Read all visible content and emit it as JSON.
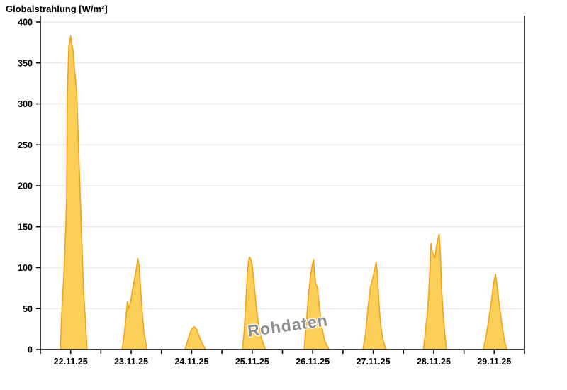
{
  "header": {
    "title": "Globalstrahlung [W/m²]"
  },
  "watermark": {
    "label": "Rohdaten"
  },
  "colors": {
    "area_fill": "#FCCF58",
    "area_stroke": "#F3A21E",
    "grid": "#ECECEC",
    "axis": "#000000",
    "label": "#000000",
    "watermark_text": "#8D8D8D",
    "background": "#FFFFFF"
  },
  "chart_data": {
    "type": "area",
    "title": "Globalstrahlung [W/m²]",
    "ylabel": "Globalstrahlung [W/m²]",
    "xlabel": "",
    "ylim": [
      0,
      400
    ],
    "y_ticks": [
      0,
      50,
      100,
      150,
      200,
      250,
      300,
      350,
      400
    ],
    "grid": "horizontal",
    "legend": "none",
    "watermark": "Rohdaten",
    "categories": [
      "22.11.25",
      "23.11.25",
      "24.11.25",
      "25.11.25",
      "26.11.25",
      "27.11.25",
      "28.11.25",
      "29.11.25"
    ],
    "peak_values_wm2": [
      383,
      111,
      28,
      113,
      110,
      107,
      141,
      92
    ],
    "series": [
      {
        "name": "Globalstrahlung Rohdaten",
        "days": [
          {
            "date": "22.11.25",
            "peak": 383,
            "profile": [
              [
                0.33,
                0
              ],
              [
                0.35,
                40
              ],
              [
                0.39,
                95
              ],
              [
                0.42,
                150
              ],
              [
                0.435,
                190
              ],
              [
                0.445,
                310
              ],
              [
                0.47,
                370
              ],
              [
                0.5,
                383
              ],
              [
                0.52,
                372
              ],
              [
                0.54,
                365
              ],
              [
                0.56,
                345
              ],
              [
                0.6,
                315
              ],
              [
                0.62,
                270
              ],
              [
                0.655,
                195
              ],
              [
                0.68,
                140
              ],
              [
                0.71,
                75
              ],
              [
                0.74,
                40
              ],
              [
                0.77,
                0
              ]
            ]
          },
          {
            "date": "23.11.25",
            "peak": 111,
            "profile": [
              [
                0.35,
                0
              ],
              [
                0.39,
                22
              ],
              [
                0.42,
                45
              ],
              [
                0.44,
                59
              ],
              [
                0.46,
                50
              ],
              [
                0.49,
                58
              ],
              [
                0.52,
                72
              ],
              [
                0.56,
                88
              ],
              [
                0.59,
                100
              ],
              [
                0.61,
                111
              ],
              [
                0.63,
                103
              ],
              [
                0.65,
                80
              ],
              [
                0.68,
                48
              ],
              [
                0.71,
                22
              ],
              [
                0.76,
                0
              ]
            ]
          },
          {
            "date": "24.11.25",
            "peak": 28,
            "profile": [
              [
                0.39,
                0
              ],
              [
                0.43,
                10
              ],
              [
                0.47,
                20
              ],
              [
                0.51,
                26
              ],
              [
                0.54,
                28
              ],
              [
                0.58,
                25
              ],
              [
                0.62,
                17
              ],
              [
                0.67,
                8
              ],
              [
                0.73,
                0
              ]
            ]
          },
          {
            "date": "25.11.25",
            "peak": 113,
            "profile": [
              [
                0.34,
                0
              ],
              [
                0.37,
                25
              ],
              [
                0.4,
                65
              ],
              [
                0.42,
                92
              ],
              [
                0.44,
                108
              ],
              [
                0.455,
                113
              ],
              [
                0.48,
                110
              ],
              [
                0.5,
                103
              ],
              [
                0.53,
                82
              ],
              [
                0.56,
                58
              ],
              [
                0.6,
                33
              ],
              [
                0.65,
                14
              ],
              [
                0.72,
                0
              ]
            ]
          },
          {
            "date": "26.11.25",
            "peak": 110,
            "profile": [
              [
                0.36,
                0
              ],
              [
                0.39,
                28
              ],
              [
                0.43,
                66
              ],
              [
                0.46,
                88
              ],
              [
                0.49,
                102
              ],
              [
                0.515,
                110
              ],
              [
                0.53,
                92
              ],
              [
                0.55,
                80
              ],
              [
                0.58,
                75
              ],
              [
                0.61,
                52
              ],
              [
                0.65,
                28
              ],
              [
                0.7,
                10
              ],
              [
                0.77,
                0
              ]
            ]
          },
          {
            "date": "27.11.25",
            "peak": 107,
            "profile": [
              [
                0.33,
                0
              ],
              [
                0.37,
                18
              ],
              [
                0.41,
                48
              ],
              [
                0.44,
                68
              ],
              [
                0.46,
                78
              ],
              [
                0.49,
                86
              ],
              [
                0.52,
                97
              ],
              [
                0.55,
                107
              ],
              [
                0.57,
                93
              ],
              [
                0.59,
                62
              ],
              [
                0.62,
                32
              ],
              [
                0.66,
                12
              ],
              [
                0.71,
                0
              ]
            ]
          },
          {
            "date": "28.11.25",
            "peak": 141,
            "profile": [
              [
                0.33,
                0
              ],
              [
                0.36,
                20
              ],
              [
                0.4,
                49
              ],
              [
                0.42,
                72
              ],
              [
                0.44,
                101
              ],
              [
                0.455,
                130
              ],
              [
                0.48,
                118
              ],
              [
                0.52,
                112
              ],
              [
                0.55,
                128
              ],
              [
                0.59,
                141
              ],
              [
                0.61,
                118
              ],
              [
                0.63,
                75
              ],
              [
                0.66,
                38
              ],
              [
                0.69,
                14
              ],
              [
                0.71,
                0
              ]
            ]
          },
          {
            "date": "29.11.25",
            "peak": 92,
            "profile": [
              [
                0.32,
                0
              ],
              [
                0.36,
                14
              ],
              [
                0.4,
                32
              ],
              [
                0.44,
                52
              ],
              [
                0.47,
                70
              ],
              [
                0.5,
                85
              ],
              [
                0.52,
                92
              ],
              [
                0.55,
                76
              ],
              [
                0.58,
                57
              ],
              [
                0.61,
                40
              ],
              [
                0.64,
                24
              ],
              [
                0.67,
                10
              ],
              [
                0.71,
                0
              ]
            ]
          }
        ]
      }
    ]
  }
}
